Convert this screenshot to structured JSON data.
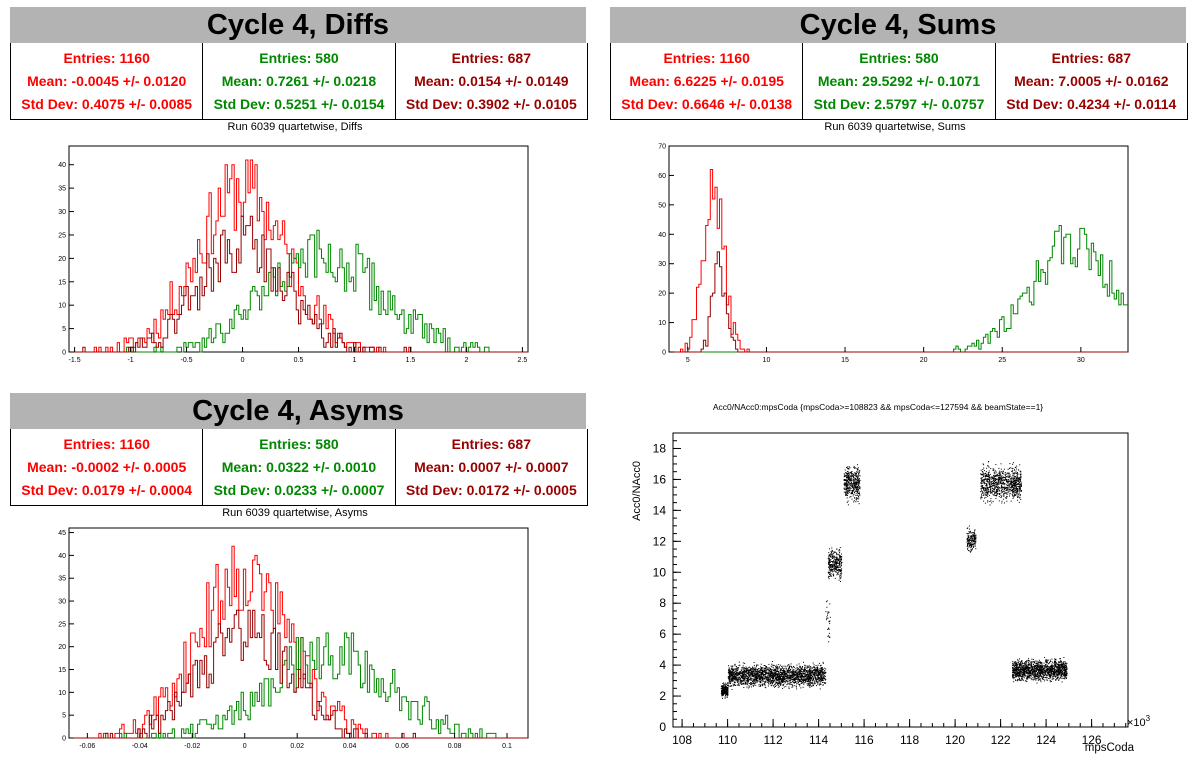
{
  "colors": {
    "c1": "#ff0000",
    "c2": "#008800",
    "c3": "#990000"
  },
  "panels": {
    "diffs": {
      "title": "Cycle 4, Diffs",
      "stats": [
        {
          "entries": "Entries: 1160",
          "mean": "Mean: -0.0045 +/- 0.0120",
          "std": "Std Dev: 0.4075 +/- 0.0085"
        },
        {
          "entries": "Entries: 580",
          "mean": "Mean: 0.7261 +/- 0.0218",
          "std": "Std Dev: 0.5251 +/- 0.0154"
        },
        {
          "entries": "Entries: 687",
          "mean": "Mean: 0.0154 +/- 0.0149",
          "std": "Std Dev: 0.3902 +/- 0.0105"
        }
      ],
      "subtitle": "Run 6039 quartetwise, Diffs"
    },
    "sums": {
      "title": "Cycle 4, Sums",
      "stats": [
        {
          "entries": "Entries: 1160",
          "mean": "Mean: 6.6225 +/- 0.0195",
          "std": "Std Dev: 0.6646 +/- 0.0138"
        },
        {
          "entries": "Entries: 580",
          "mean": "Mean: 29.5292 +/- 0.1071",
          "std": "Std Dev: 2.5797 +/- 0.0757"
        },
        {
          "entries": "Entries: 687",
          "mean": "Mean: 7.0005 +/- 0.0162",
          "std": "Std Dev: 0.4234 +/- 0.0114"
        }
      ],
      "subtitle": "Run 6039 quartetwise, Sums"
    },
    "asyms": {
      "title": "Cycle 4, Asyms",
      "stats": [
        {
          "entries": "Entries: 1160",
          "mean": "Mean: -0.0002 +/- 0.0005",
          "std": "Std Dev: 0.0179 +/- 0.0004"
        },
        {
          "entries": "Entries: 580",
          "mean": "Mean: 0.0322 +/- 0.0010",
          "std": "Std Dev: 0.0233 +/- 0.0007"
        },
        {
          "entries": "Entries: 687",
          "mean": "Mean: 0.0007 +/- 0.0007",
          "std": "Std Dev: 0.0172 +/- 0.0005"
        }
      ],
      "subtitle": "Run 6039 quartetwise, Asyms"
    },
    "scatter": {
      "title": "Acc0/NAcc0:mpsCoda {mpsCoda>=108823 && mpsCoda<=127594 && beamState==1}",
      "ylabel": "Acc0/NAcc0",
      "xlabel": "mpsCoda",
      "exponent": "×10"
    }
  },
  "chart_data": [
    {
      "type": "histogram",
      "name": "diffs",
      "xlim": [
        -1.55,
        2.55
      ],
      "ylim": [
        0,
        44
      ],
      "xticks": [
        -1.5,
        -1,
        -0.5,
        0,
        0.5,
        1,
        1.5,
        2,
        2.5
      ],
      "yticks": [
        0,
        5,
        10,
        15,
        20,
        25,
        30,
        35,
        40
      ],
      "series": [
        {
          "mean": -0.0045,
          "std": 0.4075,
          "entries": 1160,
          "peak": 42,
          "color": "#ff0000"
        },
        {
          "mean": 0.7261,
          "std": 0.5251,
          "entries": 580,
          "peak": 24,
          "color": "#008800"
        },
        {
          "mean": 0.0154,
          "std": 0.3902,
          "entries": 687,
          "peak": 28,
          "color": "#990000"
        }
      ]
    },
    {
      "type": "histogram",
      "name": "sums",
      "xlim": [
        3.8,
        33
      ],
      "ylim": [
        0,
        70
      ],
      "xticks": [
        5,
        10,
        15,
        20,
        25,
        30
      ],
      "yticks": [
        0,
        10,
        20,
        30,
        40,
        50,
        60,
        70
      ],
      "series": [
        {
          "mean": 6.6225,
          "std": 0.6646,
          "entries": 1160,
          "peak": 67,
          "color": "#ff0000"
        },
        {
          "mean": 29.5292,
          "std": 2.5797,
          "entries": 580,
          "peak": 45,
          "color": "#008800"
        },
        {
          "mean": 7.0005,
          "std": 0.4234,
          "entries": 687,
          "peak": 36,
          "color": "#990000"
        }
      ]
    },
    {
      "type": "histogram",
      "name": "asyms",
      "xlim": [
        -0.067,
        0.108
      ],
      "ylim": [
        0,
        46
      ],
      "xticks": [
        -0.06,
        -0.04,
        -0.02,
        0,
        0.02,
        0.04,
        0.06,
        0.08,
        0.1
      ],
      "yticks": [
        0,
        5,
        10,
        15,
        20,
        25,
        30,
        35,
        40,
        45
      ],
      "series": [
        {
          "mean": -0.0002,
          "std": 0.0179,
          "entries": 1160,
          "peak": 44,
          "color": "#ff0000"
        },
        {
          "mean": 0.0322,
          "std": 0.0233,
          "entries": 580,
          "peak": 23,
          "color": "#008800"
        },
        {
          "mean": 0.0007,
          "std": 0.0172,
          "entries": 687,
          "peak": 28,
          "color": "#990000"
        }
      ]
    },
    {
      "type": "scatter",
      "name": "scatter",
      "xlabel": "mpsCoda",
      "ylabel": "Acc0/NAcc0",
      "xlim": [
        107.6,
        127.6
      ],
      "ylim": [
        0,
        19
      ],
      "xticks": [
        108,
        110,
        112,
        114,
        116,
        118,
        120,
        122,
        124,
        126
      ],
      "yticks": [
        0,
        2,
        4,
        6,
        8,
        10,
        12,
        14,
        16,
        18
      ],
      "xscale_exponent": 3,
      "clusters": [
        {
          "x": [
            109.7,
            110.0
          ],
          "y": [
            1.8,
            3.0
          ],
          "n": 250
        },
        {
          "x": [
            110.0,
            114.3
          ],
          "y": [
            2.4,
            4.3
          ],
          "n": 2200
        },
        {
          "x": [
            114.3,
            114.5
          ],
          "y": [
            4.5,
            9.0
          ],
          "n": 30
        },
        {
          "x": [
            114.4,
            115.0
          ],
          "y": [
            9.3,
            11.8
          ],
          "n": 320
        },
        {
          "x": [
            115.1,
            115.8
          ],
          "y": [
            14.3,
            17.2
          ],
          "n": 420
        },
        {
          "x": [
            120.5,
            120.9
          ],
          "y": [
            11.0,
            13.2
          ],
          "n": 170
        },
        {
          "x": [
            121.1,
            122.9
          ],
          "y": [
            14.2,
            17.3
          ],
          "n": 900
        },
        {
          "x": [
            122.5,
            124.9
          ],
          "y": [
            2.8,
            4.6
          ],
          "n": 1400
        }
      ]
    }
  ]
}
